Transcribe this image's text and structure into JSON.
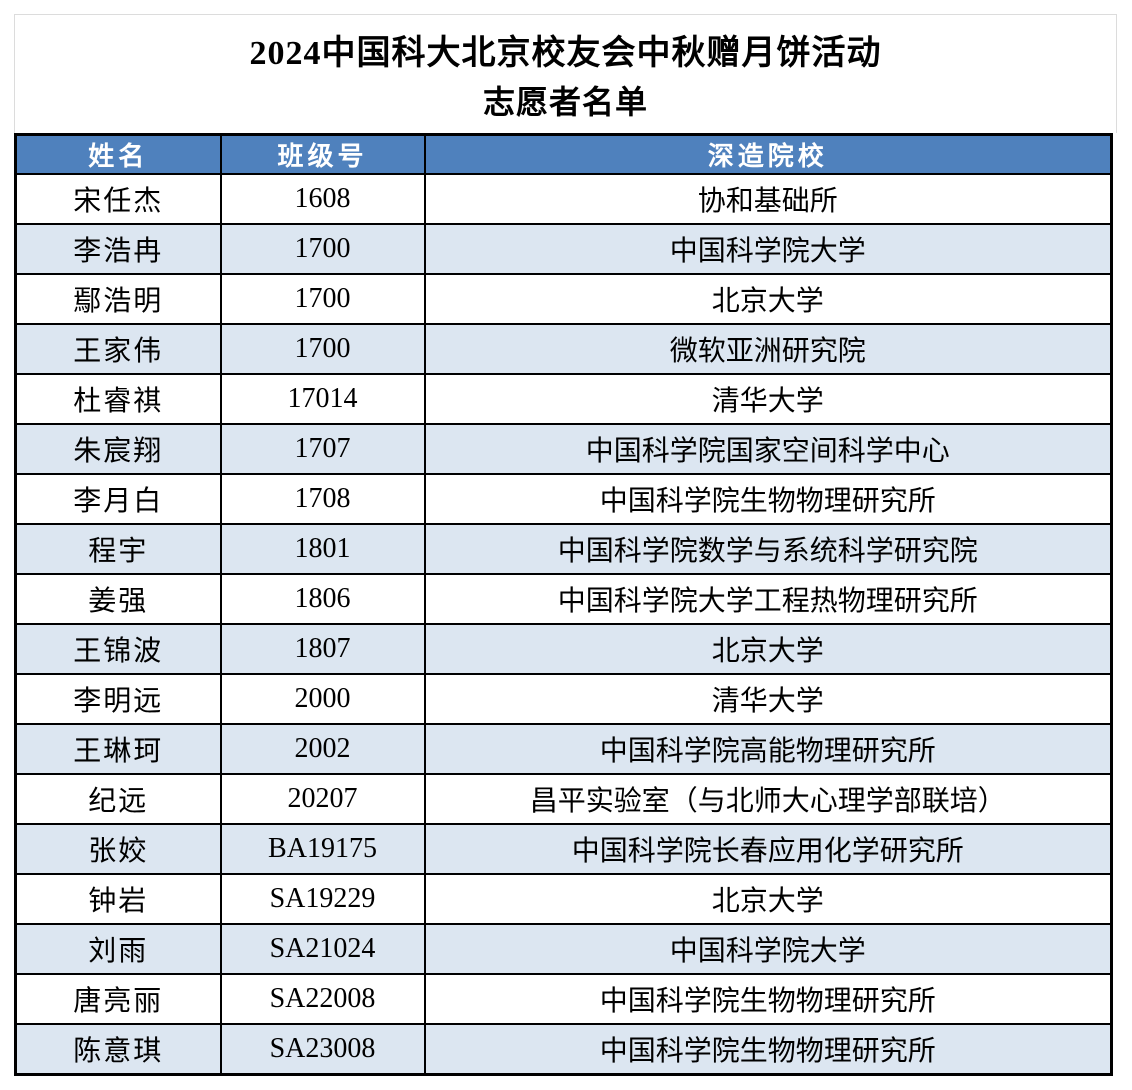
{
  "page": {
    "title_line1": "2024中国科大北京校友会中秋赠月饼活动",
    "title_line2": "志愿者名单"
  },
  "colors": {
    "header_bg": "#4F81BD",
    "header_text": "#FFFFFF",
    "stripe_bg": "#DCE6F1",
    "grid_border": "#000000",
    "title_cell_border": "#DCDCDC",
    "body_text": "#000000"
  },
  "table": {
    "headers": [
      "姓名",
      "班级号",
      "深造院校"
    ],
    "rows": [
      {
        "name": "宋任杰",
        "class_no": "1608",
        "institution": "协和基础所"
      },
      {
        "name": "李浩冉",
        "class_no": "1700",
        "institution": "中国科学院大学"
      },
      {
        "name": "鄢浩明",
        "class_no": "1700",
        "institution": "北京大学"
      },
      {
        "name": "王家伟",
        "class_no": "1700",
        "institution": "微软亚洲研究院"
      },
      {
        "name": "杜睿祺",
        "class_no": "17014",
        "institution": "清华大学"
      },
      {
        "name": "朱宸翔",
        "class_no": "1707",
        "institution": "中国科学院国家空间科学中心"
      },
      {
        "name": "李月白",
        "class_no": "1708",
        "institution": "中国科学院生物物理研究所"
      },
      {
        "name": "程宇",
        "class_no": "1801",
        "institution": "中国科学院数学与系统科学研究院"
      },
      {
        "name": "姜强",
        "class_no": "1806",
        "institution": "中国科学院大学工程热物理研究所"
      },
      {
        "name": "王锦波",
        "class_no": "1807",
        "institution": "北京大学"
      },
      {
        "name": "李明远",
        "class_no": "2000",
        "institution": "清华大学"
      },
      {
        "name": "王琳珂",
        "class_no": "2002",
        "institution": "中国科学院高能物理研究所"
      },
      {
        "name": "纪远",
        "class_no": "20207",
        "institution": "昌平实验室（与北师大心理学部联培）"
      },
      {
        "name": "张姣",
        "class_no": "BA19175",
        "institution": "中国科学院长春应用化学研究所"
      },
      {
        "name": "钟岩",
        "class_no": "SA19229",
        "institution": "北京大学"
      },
      {
        "name": "刘雨",
        "class_no": "SA21024",
        "institution": "中国科学院大学"
      },
      {
        "name": "唐亮丽",
        "class_no": "SA22008",
        "institution": "中国科学院生物物理研究所"
      },
      {
        "name": "陈意琪",
        "class_no": "SA23008",
        "institution": "中国科学院生物物理研究所"
      }
    ]
  }
}
